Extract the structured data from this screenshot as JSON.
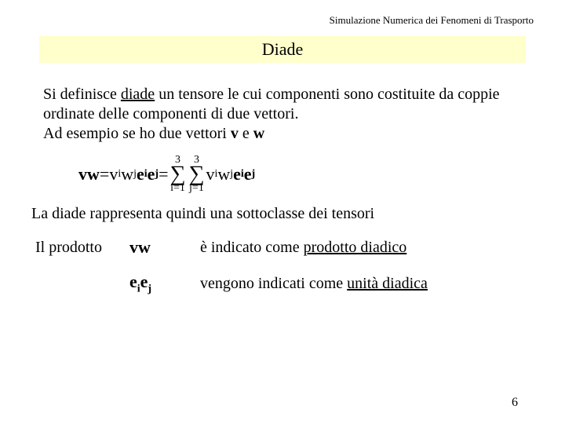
{
  "header": "Simulazione Numerica dei Fenomeni di Trasporto",
  "title": "Diade",
  "para1_a": "Si definisce ",
  "para1_b": "diade",
  "para1_c": " un tensore le cui componenti sono costituite da coppie ordinate delle componenti di due vettori.",
  "para2_a": "Ad esempio se ho due vettori ",
  "para2_v": "v",
  "para2_mid": " e ",
  "para2_w": "w",
  "eq_lhs": "vw",
  "eq_eq": " = ",
  "eq_vi": "v",
  "eq_i": "i",
  "eq_wj": "w",
  "eq_j": "j",
  "eq_ei": "e",
  "eq_ej": "e",
  "sum_top": "3",
  "sum_bot1": "i=1",
  "sum_bot2": "j=1",
  "text2": "La diade rappresenta quindi una sottoclasse dei tensori",
  "row1_label": "Il prodotto",
  "row1_sym": "vw",
  "row1_desc_a": "è indicato come ",
  "row1_desc_b": "prodotto diadico",
  "row2_sym_a": "e",
  "row2_sym_i": "i",
  "row2_sym_b": "e",
  "row2_sym_j": "j",
  "row2_desc_a": "vengono indicati come ",
  "row2_desc_b": "unità diadica",
  "pagenum": "6"
}
